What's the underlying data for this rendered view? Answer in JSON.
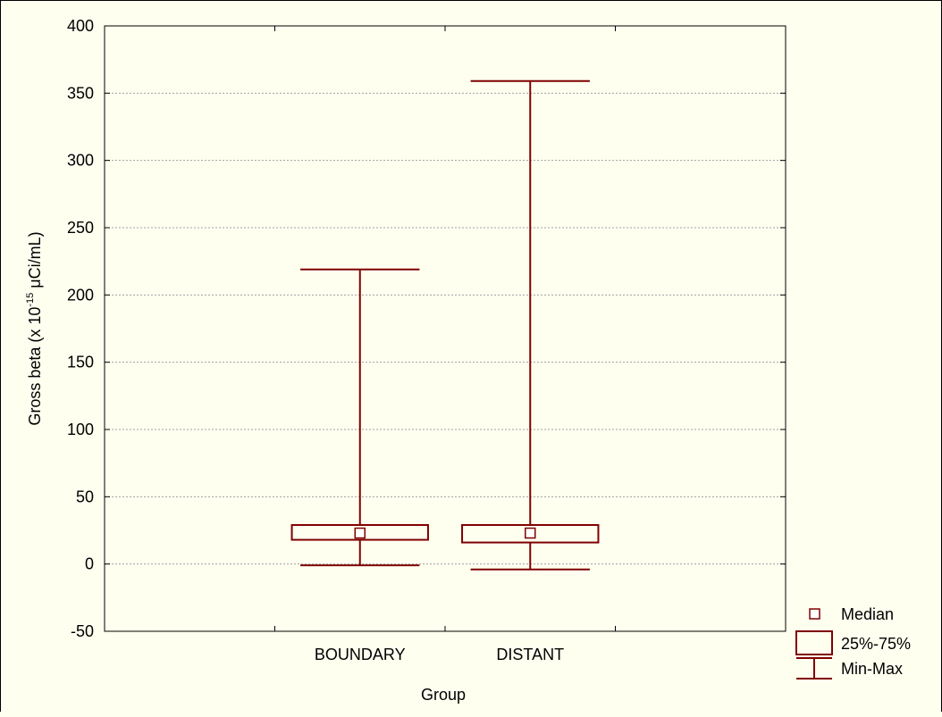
{
  "chart_data": {
    "type": "boxplot",
    "xlabel": "Group",
    "ylabel": "Gross beta (x 10",
    "ylabel_exponent": "-15",
    "ylabel_unit": " μCi/mL)",
    "ylim": [
      -50,
      400
    ],
    "yticks": [
      -50,
      0,
      50,
      100,
      150,
      200,
      250,
      300,
      350,
      400
    ],
    "grid": true,
    "categories": [
      "BOUNDARY",
      "DISTANT"
    ],
    "series": [
      {
        "category": "BOUNDARY",
        "min": -1,
        "q1": 18,
        "median": 23,
        "q3": 29,
        "max": 219
      },
      {
        "category": "DISTANT",
        "min": -4,
        "q1": 16,
        "median": 23,
        "q3": 29,
        "max": 359
      }
    ],
    "legend": {
      "position": "bottom-right",
      "items": [
        {
          "label": "Median",
          "symbol": "median"
        },
        {
          "label": "25%-75%",
          "symbol": "box"
        },
        {
          "label": "Min-Max",
          "symbol": "whisker"
        }
      ]
    },
    "colors": {
      "box": "#7f0000",
      "background": "#fffff0",
      "grid": "#a0a0a0"
    }
  }
}
